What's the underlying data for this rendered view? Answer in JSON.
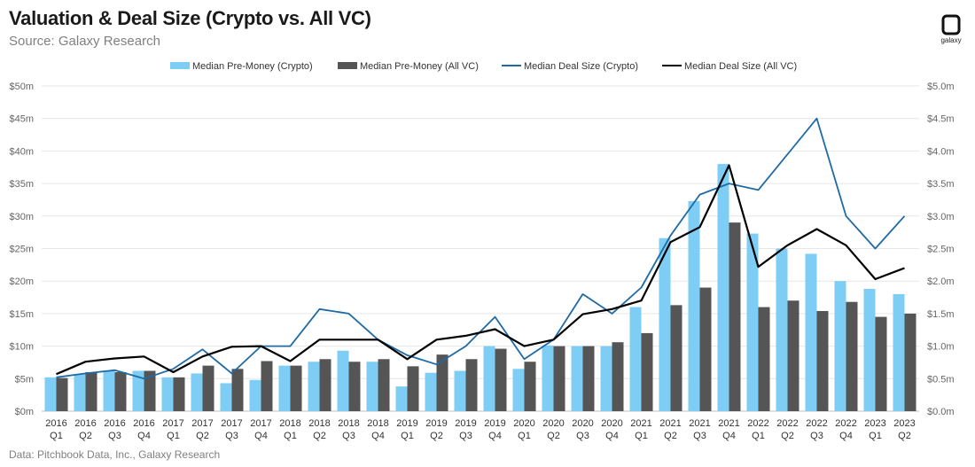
{
  "header": {
    "title": "Valuation & Deal Size (Crypto vs. All VC)",
    "subtitle": "Source: Galaxy Research",
    "logo_text": "galaxy"
  },
  "footer": {
    "source": "Data: Pitchbook Data, Inc., Galaxy Research"
  },
  "colors": {
    "crypto_bar": "#7dcdf5",
    "allvc_bar": "#555555",
    "crypto_line": "#1f6aa5",
    "allvc_line": "#000000",
    "grid": "#e6e6e6"
  },
  "chart_data": {
    "type": "bar",
    "title": "Valuation & Deal Size (Crypto vs. All VC)",
    "categories": [
      [
        "2016",
        "Q1"
      ],
      [
        "2016",
        "Q2"
      ],
      [
        "2016",
        "Q3"
      ],
      [
        "2016",
        "Q4"
      ],
      [
        "2017",
        "Q1"
      ],
      [
        "2017",
        "Q2"
      ],
      [
        "2017",
        "Q3"
      ],
      [
        "2017",
        "Q4"
      ],
      [
        "2018",
        "Q1"
      ],
      [
        "2018",
        "Q2"
      ],
      [
        "2018",
        "Q3"
      ],
      [
        "2018",
        "Q4"
      ],
      [
        "2019",
        "Q1"
      ],
      [
        "2019",
        "Q2"
      ],
      [
        "2019",
        "Q3"
      ],
      [
        "2019",
        "Q4"
      ],
      [
        "2020",
        "Q1"
      ],
      [
        "2020",
        "Q2"
      ],
      [
        "2020",
        "Q3"
      ],
      [
        "2020",
        "Q4"
      ],
      [
        "2021",
        "Q1"
      ],
      [
        "2021",
        "Q2"
      ],
      [
        "2021",
        "Q3"
      ],
      [
        "2021",
        "Q4"
      ],
      [
        "2022",
        "Q1"
      ],
      [
        "2022",
        "Q2"
      ],
      [
        "2022",
        "Q3"
      ],
      [
        "2022",
        "Q4"
      ],
      [
        "2023",
        "Q1"
      ],
      [
        "2023",
        "Q2"
      ]
    ],
    "left_axis": {
      "unit": "$m",
      "min": 0,
      "max": 50,
      "ticks": [
        "$0m",
        "$5m",
        "$10m",
        "$15m",
        "$20m",
        "$25m",
        "$30m",
        "$35m",
        "$40m",
        "$45m",
        "$50m"
      ]
    },
    "right_axis": {
      "unit": "$m",
      "min": 0,
      "max": 5,
      "ticks": [
        "$0.0m",
        "$0.5m",
        "$1.0m",
        "$1.5m",
        "$2.0m",
        "$2.5m",
        "$3.0m",
        "$3.5m",
        "$4.0m",
        "$4.5m",
        "$5.0m"
      ]
    },
    "legend": [
      "Median Pre-Money (Crypto)",
      "Median Pre-Money (All VC)",
      "Median Deal Size (Crypto)",
      "Median Deal Size (All VC)"
    ],
    "series": [
      {
        "name": "Median Pre-Money (Crypto)",
        "kind": "bar",
        "axis": "left",
        "values": [
          5.2,
          5.7,
          6.2,
          6.2,
          5.2,
          5.8,
          4.3,
          4.8,
          7.0,
          7.6,
          9.3,
          7.6,
          3.8,
          5.9,
          6.2,
          10.0,
          6.5,
          10.1,
          10.0,
          10.0,
          16.0,
          26.6,
          32.3,
          38.0,
          27.3,
          25.0,
          24.2,
          20.0,
          18.8,
          18.0
        ]
      },
      {
        "name": "Median Pre-Money (All VC)",
        "kind": "bar",
        "axis": "left",
        "values": [
          5.1,
          6.0,
          6.0,
          6.2,
          5.2,
          7.0,
          6.5,
          7.7,
          7.0,
          8.0,
          7.6,
          8.0,
          6.9,
          8.7,
          8.0,
          9.6,
          7.6,
          10.0,
          10.0,
          10.6,
          12.0,
          16.3,
          19.0,
          29.0,
          16.0,
          17.0,
          15.4,
          16.8,
          14.5,
          15.0
        ]
      },
      {
        "name": "Median Deal Size (Crypto)",
        "kind": "line",
        "axis": "right",
        "values": [
          0.52,
          0.58,
          0.63,
          0.5,
          0.65,
          0.95,
          0.58,
          1.0,
          1.0,
          1.57,
          1.5,
          1.1,
          0.86,
          0.72,
          1.0,
          1.45,
          0.8,
          1.1,
          1.8,
          1.5,
          1.9,
          2.7,
          3.33,
          3.5,
          3.4,
          3.95,
          4.5,
          3.0,
          2.5,
          3.0
        ]
      },
      {
        "name": "Median Deal Size (All VC)",
        "kind": "line",
        "axis": "right",
        "values": [
          0.57,
          0.76,
          0.81,
          0.84,
          0.6,
          0.84,
          0.99,
          1.0,
          0.77,
          1.1,
          1.1,
          1.1,
          0.8,
          1.1,
          1.16,
          1.26,
          1.0,
          1.1,
          1.49,
          1.57,
          1.7,
          2.6,
          2.83,
          3.78,
          2.22,
          2.55,
          2.8,
          2.55,
          2.03,
          2.2
        ]
      }
    ]
  }
}
